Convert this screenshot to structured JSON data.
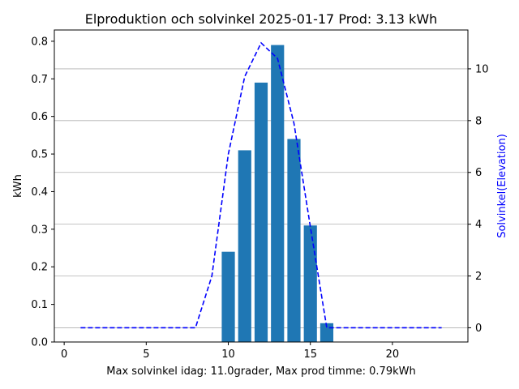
{
  "chart_data": {
    "type": "bar",
    "title": "Elproduktion och solvinkel 2025-01-17 Prod: 3.13 kWh",
    "xlabel": "Max solvinkel idag: 11.0grader, Max prod timme: 0.79kWh",
    "ylabel": "kWh",
    "y2label": "Solvinkel(Elevation)",
    "xlim": [
      -0.6,
      24.6
    ],
    "ylim": [
      0,
      0.83
    ],
    "y2lim": [
      -0.55,
      11.5
    ],
    "xticks": [
      0,
      5,
      10,
      15,
      20
    ],
    "yticks": [
      0.0,
      0.1,
      0.2,
      0.3,
      0.4,
      0.5,
      0.6,
      0.7,
      0.8
    ],
    "y2ticks": [
      0,
      2,
      4,
      6,
      8,
      10
    ],
    "grid": "horizontal lines at right-axis ticks",
    "bar_color": "#1f77b4",
    "line_color": "#0000ff",
    "series": [
      {
        "type": "bar",
        "axis": "left",
        "x": [
          10,
          11,
          12,
          13,
          14,
          15,
          16
        ],
        "values": [
          0.24,
          0.51,
          0.69,
          0.79,
          0.54,
          0.31,
          0.05
        ]
      },
      {
        "type": "line",
        "style": "dashed",
        "axis": "right",
        "x": [
          1,
          2,
          3,
          4,
          5,
          6,
          7,
          8,
          9,
          10,
          11,
          12,
          13,
          14,
          15,
          16,
          17,
          18,
          19,
          20,
          21,
          22,
          23
        ],
        "values": [
          0,
          0,
          0,
          0,
          0,
          0,
          0,
          0,
          2.0,
          6.7,
          9.7,
          11.0,
          10.4,
          7.9,
          3.9,
          0,
          0,
          0,
          0,
          0,
          0,
          0,
          0
        ]
      }
    ]
  }
}
